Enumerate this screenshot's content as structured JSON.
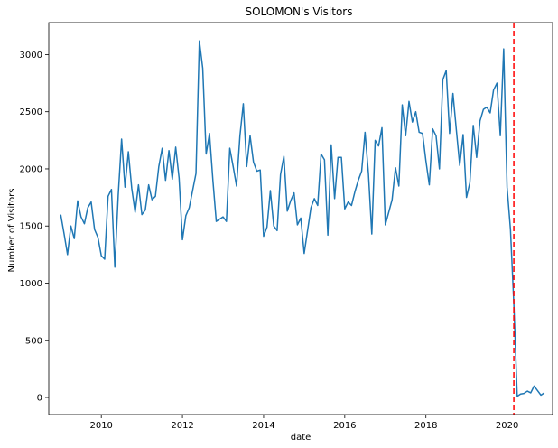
{
  "chart_data": {
    "type": "line",
    "title": "SOLOMON's Visitors",
    "xlabel": "date",
    "ylabel": "Number of Visitors",
    "xlim": [
      "2008-09-15",
      "2021-02-15"
    ],
    "ylim": [
      -150,
      3280
    ],
    "x_ticks": [
      "2010",
      "2012",
      "2014",
      "2016",
      "2018",
      "2020"
    ],
    "y_ticks": [
      "0",
      "500",
      "1000",
      "1500",
      "2000",
      "2500",
      "3000"
    ],
    "grid": false,
    "colors": {
      "line": "#1f77b4",
      "marker_line": "#ff0000",
      "axes": "#000000"
    },
    "series": [
      {
        "x": [
          "2009-01",
          "2009-02",
          "2009-03",
          "2009-04",
          "2009-05",
          "2009-06",
          "2009-07",
          "2009-08",
          "2009-09",
          "2009-10",
          "2009-11",
          "2009-12",
          "2010-01",
          "2010-02",
          "2010-03",
          "2010-04",
          "2010-05",
          "2010-06",
          "2010-07",
          "2010-08",
          "2010-09",
          "2010-10",
          "2010-11",
          "2010-12",
          "2011-01",
          "2011-02",
          "2011-03",
          "2011-04",
          "2011-05",
          "2011-06",
          "2011-07",
          "2011-08",
          "2011-09",
          "2011-10",
          "2011-11",
          "2011-12",
          "2012-01",
          "2012-02",
          "2012-03",
          "2012-04",
          "2012-05",
          "2012-06",
          "2012-07",
          "2012-08",
          "2012-09",
          "2012-10",
          "2012-11",
          "2012-12",
          "2013-01",
          "2013-02",
          "2013-03",
          "2013-04",
          "2013-05",
          "2013-06",
          "2013-07",
          "2013-08",
          "2013-09",
          "2013-10",
          "2013-11",
          "2013-12",
          "2014-01",
          "2014-02",
          "2014-03",
          "2014-04",
          "2014-05",
          "2014-06",
          "2014-07",
          "2014-08",
          "2014-09",
          "2014-10",
          "2014-11",
          "2014-12",
          "2015-01",
          "2015-02",
          "2015-03",
          "2015-04",
          "2015-05",
          "2015-06",
          "2015-07",
          "2015-08",
          "2015-09",
          "2015-10",
          "2015-11",
          "2015-12",
          "2016-01",
          "2016-02",
          "2016-03",
          "2016-04",
          "2016-05",
          "2016-06",
          "2016-07",
          "2016-08",
          "2016-09",
          "2016-10",
          "2016-11",
          "2016-12",
          "2017-01",
          "2017-02",
          "2017-03",
          "2017-04",
          "2017-05",
          "2017-06",
          "2017-07",
          "2017-08",
          "2017-09",
          "2017-10",
          "2017-11",
          "2017-12",
          "2018-01",
          "2018-02",
          "2018-03",
          "2018-04",
          "2018-05",
          "2018-06",
          "2018-07",
          "2018-08",
          "2018-09",
          "2018-10",
          "2018-11",
          "2018-12",
          "2019-01",
          "2019-02",
          "2019-03",
          "2019-04",
          "2019-05",
          "2019-06",
          "2019-07",
          "2019-08",
          "2019-09",
          "2019-10",
          "2019-11",
          "2019-12",
          "2020-01",
          "2020-02",
          "2020-03",
          "2020-04",
          "2020-05",
          "2020-06",
          "2020-07",
          "2020-08",
          "2020-09",
          "2020-10",
          "2020-11",
          "2020-12"
        ],
        "values": [
          1600,
          1430,
          1250,
          1500,
          1390,
          1720,
          1580,
          1520,
          1660,
          1710,
          1470,
          1400,
          1240,
          1210,
          1760,
          1820,
          1140,
          1770,
          2260,
          1840,
          2150,
          1830,
          1620,
          1860,
          1600,
          1640,
          1860,
          1730,
          1760,
          2020,
          2180,
          1900,
          2160,
          1910,
          2190,
          1920,
          1380,
          1590,
          1660,
          1810,
          1960,
          3120,
          2880,
          2130,
          2310,
          1900,
          1540,
          1560,
          1580,
          1540,
          2180,
          2020,
          1850,
          2290,
          2570,
          2020,
          2290,
          2060,
          1980,
          1990,
          1410,
          1490,
          1810,
          1500,
          1460,
          1950,
          2110,
          1630,
          1720,
          1790,
          1510,
          1570,
          1260,
          1460,
          1660,
          1740,
          1680,
          2130,
          2080,
          1420,
          2210,
          1740,
          2100,
          2100,
          1650,
          1710,
          1680,
          1800,
          1900,
          1980,
          2320,
          1960,
          1430,
          2250,
          2200,
          2360,
          1510,
          1620,
          1730,
          2010,
          1850,
          2560,
          2290,
          2590,
          2410,
          2500,
          2320,
          2310,
          2070,
          1860,
          2350,
          2290,
          2000,
          2780,
          2860,
          2310,
          2660,
          2340,
          2030,
          2300,
          1750,
          1880,
          2380,
          2100,
          2420,
          2520,
          2540,
          2490,
          2690,
          2750,
          2290,
          3050,
          1840,
          1470,
          820,
          10,
          30,
          35,
          55,
          40,
          100,
          60,
          20,
          40
        ]
      }
    ],
    "vline_x": "2020-03"
  }
}
